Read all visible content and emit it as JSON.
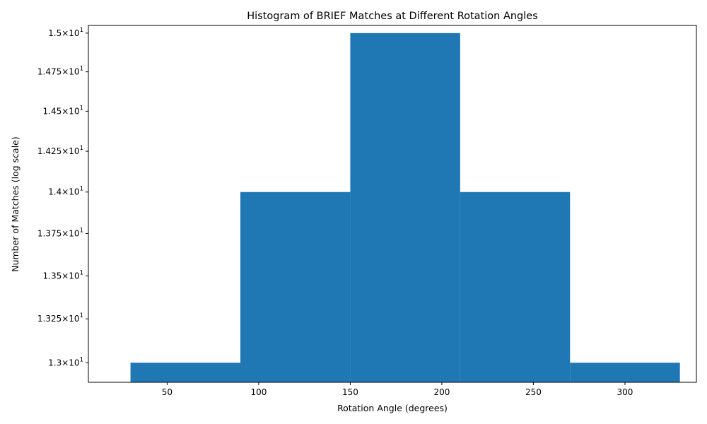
{
  "chart_data": {
    "type": "bar",
    "title": "Histogram of BRIEF Matches at Different Rotation Angles",
    "xlabel": "Rotation Angle (degrees)",
    "ylabel": "Number of Matches (log scale)",
    "y_scale": "log",
    "grid": false,
    "legend": "none",
    "bar_color": "#1f77b4",
    "xlim": [
      7,
      339
    ],
    "ylim": [
      12.89,
      15.05
    ],
    "bins": [
      {
        "x0": 30,
        "x1": 90,
        "value": 13
      },
      {
        "x0": 90,
        "x1": 150,
        "value": 14
      },
      {
        "x0": 150,
        "x1": 210,
        "value": 15
      },
      {
        "x0": 210,
        "x1": 270,
        "value": 14
      },
      {
        "x0": 270,
        "x1": 330,
        "value": 13
      }
    ],
    "x_ticks": [
      {
        "value": 50,
        "label": "50"
      },
      {
        "value": 100,
        "label": "100"
      },
      {
        "value": 150,
        "label": "150"
      },
      {
        "value": 200,
        "label": "200"
      },
      {
        "value": 250,
        "label": "250"
      },
      {
        "value": 300,
        "label": "300"
      }
    ],
    "y_ticks": [
      {
        "value": 13.0,
        "mantissa": "1.3",
        "exponent": "1"
      },
      {
        "value": 13.25,
        "mantissa": "1.325",
        "exponent": "1"
      },
      {
        "value": 13.5,
        "mantissa": "1.35",
        "exponent": "1"
      },
      {
        "value": 13.75,
        "mantissa": "1.375",
        "exponent": "1"
      },
      {
        "value": 14.0,
        "mantissa": "1.4",
        "exponent": "1"
      },
      {
        "value": 14.25,
        "mantissa": "1.425",
        "exponent": "1"
      },
      {
        "value": 14.5,
        "mantissa": "1.45",
        "exponent": "1"
      },
      {
        "value": 14.75,
        "mantissa": "1.475",
        "exponent": "1"
      },
      {
        "value": 15.0,
        "mantissa": "1.5",
        "exponent": "1"
      }
    ],
    "tick_base": "10"
  }
}
